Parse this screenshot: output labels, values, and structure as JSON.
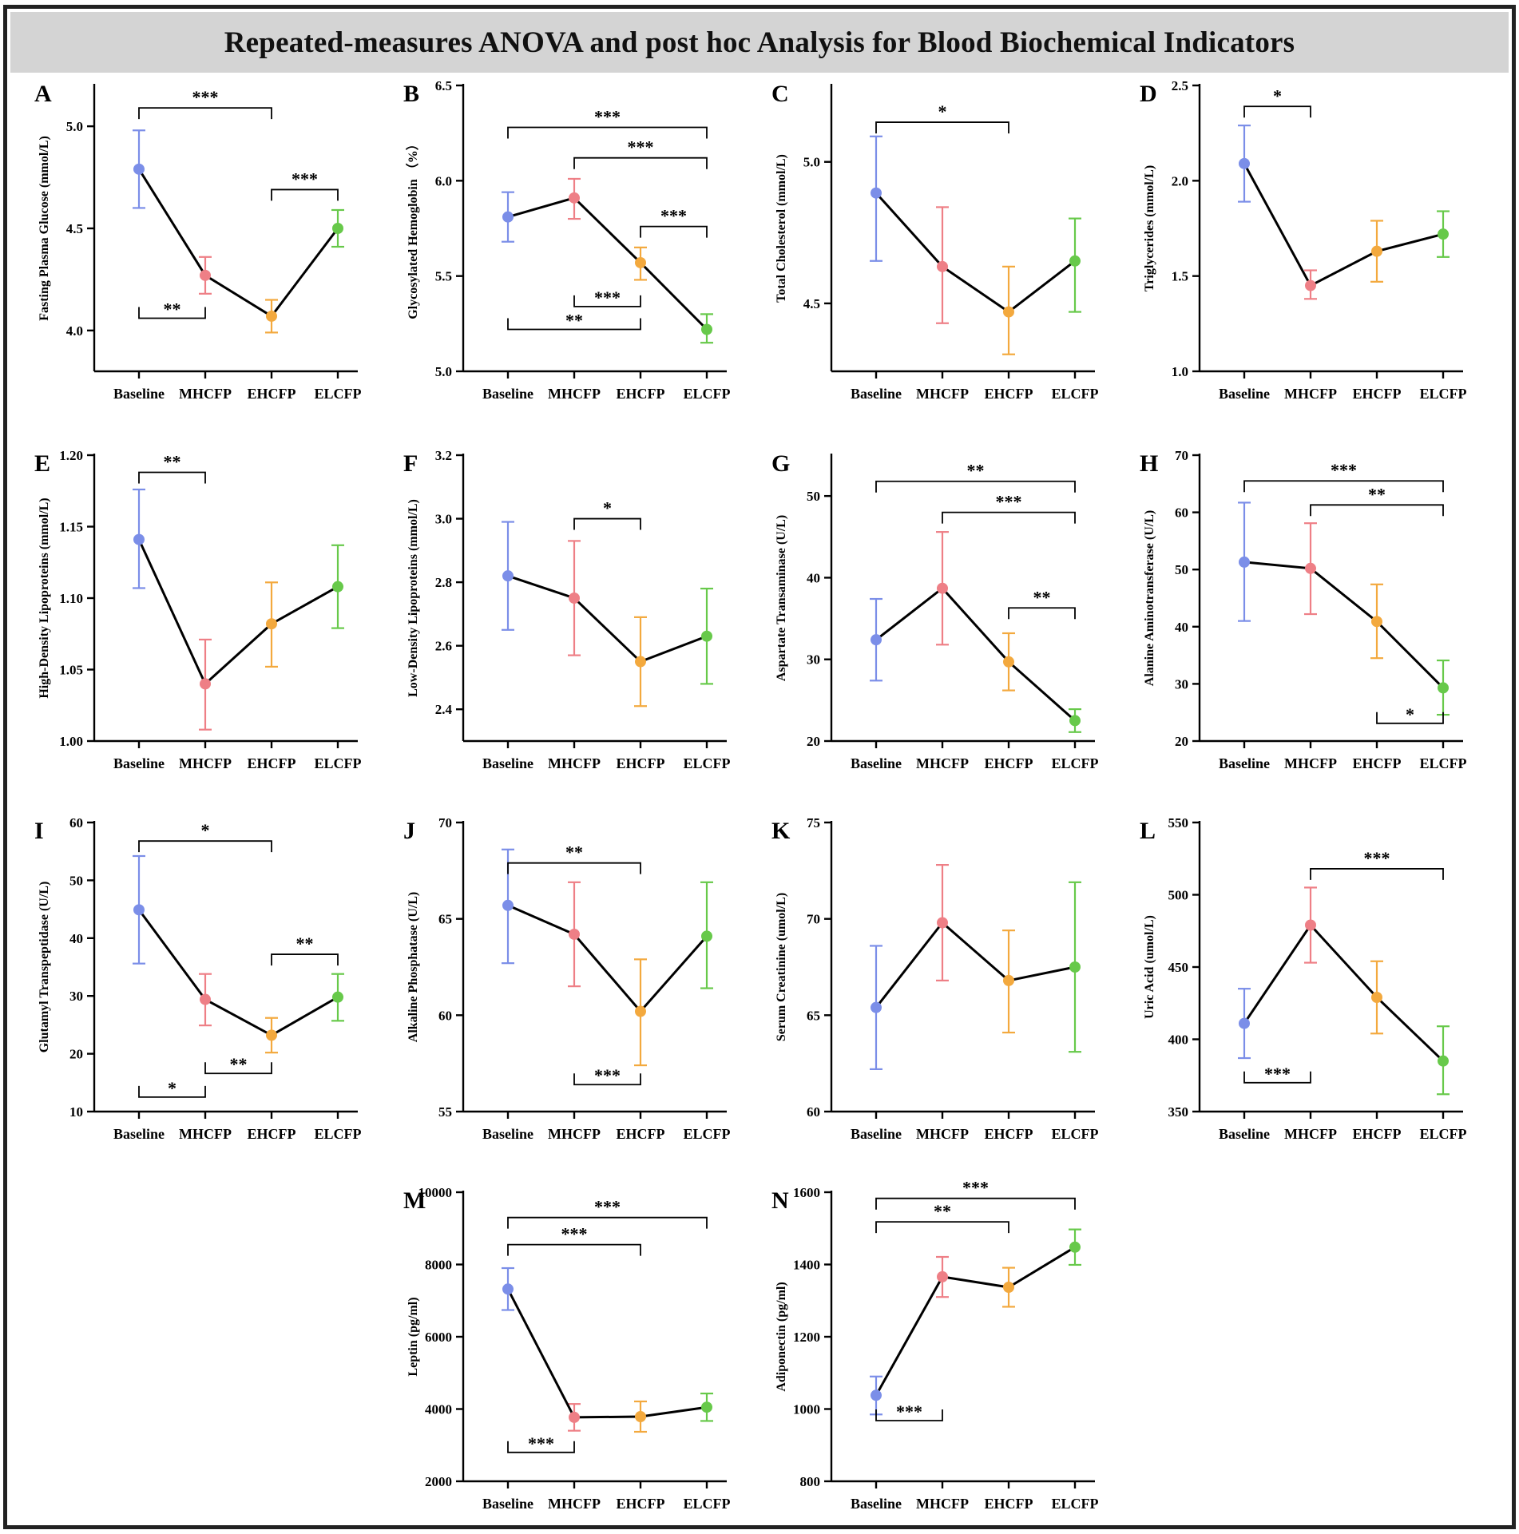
{
  "figure_title": "Repeated-measures ANOVA and post hoc Analysis for Blood Biochemical Indicators",
  "colors": {
    "Baseline": "#7b8ee8",
    "MHCFP": "#ee7f86",
    "EHCFP": "#f3a93e",
    "ELCFP": "#67c94a",
    "line": "#000000"
  },
  "chart_data": [
    {
      "letter": "A",
      "type": "line",
      "ylabel": "Fasting Plasma Glucose (mmol/L)",
      "categories": [
        "Baseline",
        "MHCFP",
        "EHCFP",
        "ELCFP"
      ],
      "ylim": [
        3.8,
        5.2
      ],
      "ticks": [
        4.0,
        4.5,
        5.0
      ],
      "tick_labels": [
        "4.0",
        "4.5",
        "5.0"
      ],
      "values": [
        4.79,
        4.27,
        4.07,
        4.5
      ],
      "errors": [
        [
          4.6,
          4.98
        ],
        [
          4.18,
          4.36
        ],
        [
          3.99,
          4.15
        ],
        [
          4.41,
          4.59
        ]
      ],
      "annotations": [
        {
          "from": 0,
          "to": 2,
          "y": 5.09,
          "dir": "down",
          "label": "***"
        },
        {
          "from": 2,
          "to": 3,
          "y": 4.69,
          "dir": "down",
          "label": "***"
        },
        {
          "from": 0,
          "to": 1,
          "y": 4.06,
          "dir": "up",
          "label": "**"
        }
      ]
    },
    {
      "letter": "B",
      "type": "line",
      "ylabel": "Glycosylated Hemoglobin （%）",
      "categories": [
        "Baseline",
        "MHCFP",
        "EHCFP",
        "ELCFP"
      ],
      "ylim": [
        5.0,
        6.5
      ],
      "ticks": [
        5.0,
        5.5,
        6.0,
        6.5
      ],
      "tick_labels": [
        "5.0",
        "5.5",
        "6.0",
        "6.5"
      ],
      "values": [
        5.81,
        5.91,
        5.57,
        5.22
      ],
      "errors": [
        [
          5.68,
          5.94
        ],
        [
          5.8,
          6.01
        ],
        [
          5.48,
          5.65
        ],
        [
          5.15,
          5.3
        ]
      ],
      "annotations": [
        {
          "from": 0,
          "to": 3,
          "y": 6.28,
          "dir": "down",
          "label": "***"
        },
        {
          "from": 1,
          "to": 3,
          "y": 6.12,
          "dir": "down",
          "label": "***"
        },
        {
          "from": 2,
          "to": 3,
          "y": 5.76,
          "dir": "down",
          "label": "***"
        },
        {
          "from": 1,
          "to": 2,
          "y": 5.34,
          "dir": "up",
          "label": "***"
        },
        {
          "from": 0,
          "to": 2,
          "y": 5.22,
          "dir": "up",
          "label": "**"
        }
      ]
    },
    {
      "letter": "C",
      "type": "line",
      "ylabel": "Total Cholesterol (mmol/L)",
      "categories": [
        "Baseline",
        "MHCFP",
        "EHCFP",
        "ELCFP"
      ],
      "ylim": [
        4.26,
        5.27
      ],
      "ticks": [
        4.5,
        5.0
      ],
      "tick_labels": [
        "4.5",
        "5.0"
      ],
      "values": [
        4.89,
        4.63,
        4.47,
        4.65
      ],
      "errors": [
        [
          4.65,
          5.09
        ],
        [
          4.43,
          4.84
        ],
        [
          4.32,
          4.63
        ],
        [
          4.47,
          4.8
        ]
      ],
      "annotations": [
        {
          "from": 0,
          "to": 2,
          "y": 5.14,
          "dir": "down",
          "label": "*"
        }
      ]
    },
    {
      "letter": "D",
      "type": "line",
      "ylabel": "Triglycerides (mmol/L)",
      "categories": [
        "Baseline",
        "MHCFP",
        "EHCFP",
        "ELCFP"
      ],
      "ylim": [
        1.0,
        2.5
      ],
      "ticks": [
        1.0,
        1.5,
        2.0,
        2.5
      ],
      "tick_labels": [
        "1.0",
        "1.5",
        "2.0",
        "2.5"
      ],
      "values": [
        2.09,
        1.45,
        1.63,
        1.72
      ],
      "errors": [
        [
          1.89,
          2.29
        ],
        [
          1.38,
          1.53
        ],
        [
          1.47,
          1.79
        ],
        [
          1.6,
          1.84
        ]
      ],
      "annotations": [
        {
          "from": 0,
          "to": 1,
          "y": 2.39,
          "dir": "down",
          "label": "*"
        }
      ]
    },
    {
      "letter": "E",
      "type": "line",
      "ylabel": "High-Density Lipoproteins (mmol/L)",
      "categories": [
        "Baseline",
        "MHCFP",
        "EHCFP",
        "ELCFP"
      ],
      "ylim": [
        1.0,
        1.2
      ],
      "ticks": [
        1.0,
        1.05,
        1.1,
        1.15,
        1.2
      ],
      "tick_labels": [
        "1.00",
        "1.05",
        "1.10",
        "1.15",
        "1.20"
      ],
      "values": [
        1.141,
        1.04,
        1.082,
        1.108
      ],
      "errors": [
        [
          1.107,
          1.176
        ],
        [
          1.008,
          1.071
        ],
        [
          1.052,
          1.111
        ],
        [
          1.079,
          1.137
        ]
      ],
      "annotations": [
        {
          "from": 0,
          "to": 1,
          "y": 1.188,
          "dir": "down",
          "label": "**"
        }
      ]
    },
    {
      "letter": "F",
      "type": "line",
      "ylabel": "Low-Density Lipoproteins (mmol/L)",
      "categories": [
        "Baseline",
        "MHCFP",
        "EHCFP",
        "ELCFP"
      ],
      "ylim": [
        2.3,
        3.2
      ],
      "ticks": [
        2.4,
        2.6,
        2.8,
        3.0,
        3.2
      ],
      "tick_labels": [
        "2.4",
        "2.6",
        "2.8",
        "3.0",
        "3.2"
      ],
      "values": [
        2.82,
        2.75,
        2.55,
        2.63
      ],
      "errors": [
        [
          2.65,
          2.99
        ],
        [
          2.57,
          2.93
        ],
        [
          2.41,
          2.69
        ],
        [
          2.48,
          2.78
        ]
      ],
      "annotations": [
        {
          "from": 1,
          "to": 2,
          "y": 3.0,
          "dir": "down",
          "label": "*"
        }
      ]
    },
    {
      "letter": "G",
      "type": "line",
      "ylabel": "Aspartate Transaminase (U/L)",
      "categories": [
        "Baseline",
        "MHCFP",
        "EHCFP",
        "ELCFP"
      ],
      "ylim": [
        20,
        55
      ],
      "ticks": [
        20,
        30,
        40,
        50
      ],
      "tick_labels": [
        "20",
        "30",
        "40",
        "50"
      ],
      "values": [
        32.4,
        38.7,
        29.7,
        22.5
      ],
      "errors": [
        [
          27.4,
          37.4
        ],
        [
          31.8,
          45.6
        ],
        [
          26.2,
          33.2
        ],
        [
          21.1,
          23.9
        ]
      ],
      "annotations": [
        {
          "from": 0,
          "to": 3,
          "y": 51.8,
          "dir": "down",
          "label": "**"
        },
        {
          "from": 1,
          "to": 3,
          "y": 48.0,
          "dir": "down",
          "label": "***"
        },
        {
          "from": 2,
          "to": 3,
          "y": 36.3,
          "dir": "down",
          "label": "**"
        }
      ]
    },
    {
      "letter": "H",
      "type": "line",
      "ylabel": "Alanine Aminotransferase (U/L)",
      "categories": [
        "Baseline",
        "MHCFP",
        "EHCFP",
        "ELCFP"
      ],
      "ylim": [
        20,
        70
      ],
      "ticks": [
        20,
        30,
        40,
        50,
        60,
        70
      ],
      "tick_labels": [
        "20",
        "30",
        "40",
        "50",
        "60",
        "70"
      ],
      "values": [
        51.3,
        50.2,
        40.9,
        29.3
      ],
      "errors": [
        [
          41.0,
          61.7
        ],
        [
          42.2,
          58.1
        ],
        [
          34.5,
          47.4
        ],
        [
          24.6,
          34.1
        ]
      ],
      "annotations": [
        {
          "from": 0,
          "to": 3,
          "y": 65.5,
          "dir": "down",
          "label": "***"
        },
        {
          "from": 1,
          "to": 3,
          "y": 61.3,
          "dir": "down",
          "label": "**"
        },
        {
          "from": 2,
          "to": 3,
          "y": 23.1,
          "dir": "up",
          "label": "*"
        }
      ]
    },
    {
      "letter": "I",
      "type": "line",
      "ylabel": "Glutamyl Transpeptidase (U/L)",
      "categories": [
        "Baseline",
        "MHCFP",
        "EHCFP",
        "ELCFP"
      ],
      "ylim": [
        10,
        60
      ],
      "ticks": [
        10,
        20,
        30,
        40,
        50,
        60
      ],
      "tick_labels": [
        "10",
        "20",
        "30",
        "40",
        "50",
        "60"
      ],
      "values": [
        44.9,
        29.4,
        23.2,
        29.8
      ],
      "errors": [
        [
          35.6,
          54.2
        ],
        [
          24.9,
          33.8
        ],
        [
          20.2,
          26.2
        ],
        [
          25.7,
          33.8
        ]
      ],
      "annotations": [
        {
          "from": 0,
          "to": 2,
          "y": 56.8,
          "dir": "down",
          "label": "*"
        },
        {
          "from": 2,
          "to": 3,
          "y": 37.2,
          "dir": "down",
          "label": "**"
        },
        {
          "from": 1,
          "to": 2,
          "y": 16.6,
          "dir": "up",
          "label": "**"
        },
        {
          "from": 0,
          "to": 1,
          "y": 12.5,
          "dir": "up",
          "label": "*"
        }
      ]
    },
    {
      "letter": "J",
      "type": "line",
      "ylabel": "Alkaline Phosphatase (U/L)",
      "categories": [
        "Baseline",
        "MHCFP",
        "EHCFP",
        "ELCFP"
      ],
      "ylim": [
        55,
        70
      ],
      "ticks": [
        55,
        60,
        65,
        70
      ],
      "tick_labels": [
        "55",
        "60",
        "65",
        "70"
      ],
      "values": [
        65.7,
        64.2,
        60.2,
        64.1
      ],
      "errors": [
        [
          62.7,
          68.6
        ],
        [
          61.5,
          66.9
        ],
        [
          57.4,
          62.9
        ],
        [
          61.4,
          66.9
        ]
      ],
      "annotations": [
        {
          "from": 0,
          "to": 2,
          "y": 67.9,
          "dir": "down",
          "label": "**"
        },
        {
          "from": 1,
          "to": 2,
          "y": 56.4,
          "dir": "up",
          "label": "***"
        }
      ]
    },
    {
      "letter": "K",
      "type": "line",
      "ylabel": "Serum Creatinine (umol/L)",
      "categories": [
        "Baseline",
        "MHCFP",
        "EHCFP",
        "ELCFP"
      ],
      "ylim": [
        60,
        75
      ],
      "ticks": [
        60,
        65,
        70,
        75
      ],
      "tick_labels": [
        "60",
        "65",
        "70",
        "75"
      ],
      "values": [
        65.4,
        69.8,
        66.8,
        67.5
      ],
      "errors": [
        [
          62.2,
          68.6
        ],
        [
          66.8,
          72.8
        ],
        [
          64.1,
          69.4
        ],
        [
          63.1,
          71.9
        ]
      ],
      "annotations": []
    },
    {
      "letter": "L",
      "type": "line",
      "ylabel": "Uric Acid (umol/L)",
      "categories": [
        "Baseline",
        "MHCFP",
        "EHCFP",
        "ELCFP"
      ],
      "ylim": [
        350,
        550
      ],
      "ticks": [
        350,
        400,
        450,
        500,
        550
      ],
      "tick_labels": [
        "350",
        "400",
        "450",
        "500",
        "550"
      ],
      "values": [
        411,
        479,
        429,
        385
      ],
      "errors": [
        [
          387,
          435
        ],
        [
          453,
          505
        ],
        [
          404,
          454
        ],
        [
          362,
          409
        ]
      ],
      "annotations": [
        {
          "from": 1,
          "to": 3,
          "y": 518,
          "dir": "down",
          "label": "***"
        },
        {
          "from": 0,
          "to": 1,
          "y": 370,
          "dir": "up",
          "label": "***"
        }
      ]
    },
    {
      "letter": "M",
      "type": "line",
      "ylabel": "Leptin (pg/ml)",
      "categories": [
        "Baseline",
        "MHCFP",
        "EHCFP",
        "ELCFP"
      ],
      "ylim": [
        2000,
        10000
      ],
      "ticks": [
        2000,
        4000,
        6000,
        8000,
        10000
      ],
      "tick_labels": [
        "2000",
        "4000",
        "6000",
        "8000",
        "10000"
      ],
      "values": [
        7320,
        3770,
        3790,
        4050
      ],
      "errors": [
        [
          6740,
          7900
        ],
        [
          3400,
          4140
        ],
        [
          3370,
          4210
        ],
        [
          3670,
          4430
        ]
      ],
      "annotations": [
        {
          "from": 0,
          "to": 3,
          "y": 9300,
          "dir": "down",
          "label": "***"
        },
        {
          "from": 0,
          "to": 2,
          "y": 8550,
          "dir": "down",
          "label": "***"
        },
        {
          "from": 0,
          "to": 1,
          "y": 2800,
          "dir": "up",
          "label": "***"
        }
      ]
    },
    {
      "letter": "N",
      "type": "line",
      "ylabel": "Adiponectin (pg/ml)",
      "categories": [
        "Baseline",
        "MHCFP",
        "EHCFP",
        "ELCFP"
      ],
      "ylim": [
        800,
        1600
      ],
      "ticks": [
        800,
        1000,
        1200,
        1400,
        1600
      ],
      "tick_labels": [
        "800",
        "1000",
        "1200",
        "1400",
        "1600"
      ],
      "values": [
        1038,
        1366,
        1337,
        1448
      ],
      "errors": [
        [
          985,
          1090
        ],
        [
          1310,
          1421
        ],
        [
          1283,
          1391
        ],
        [
          1399,
          1497
        ]
      ],
      "annotations": [
        {
          "from": 0,
          "to": 2,
          "y": 1518,
          "dir": "down",
          "label": "**"
        },
        {
          "from": 0,
          "to": 3,
          "y": 1583,
          "dir": "down",
          "label": "***"
        },
        {
          "from": 0,
          "to": 1,
          "y": 968,
          "dir": "up",
          "label": "***"
        }
      ]
    }
  ]
}
